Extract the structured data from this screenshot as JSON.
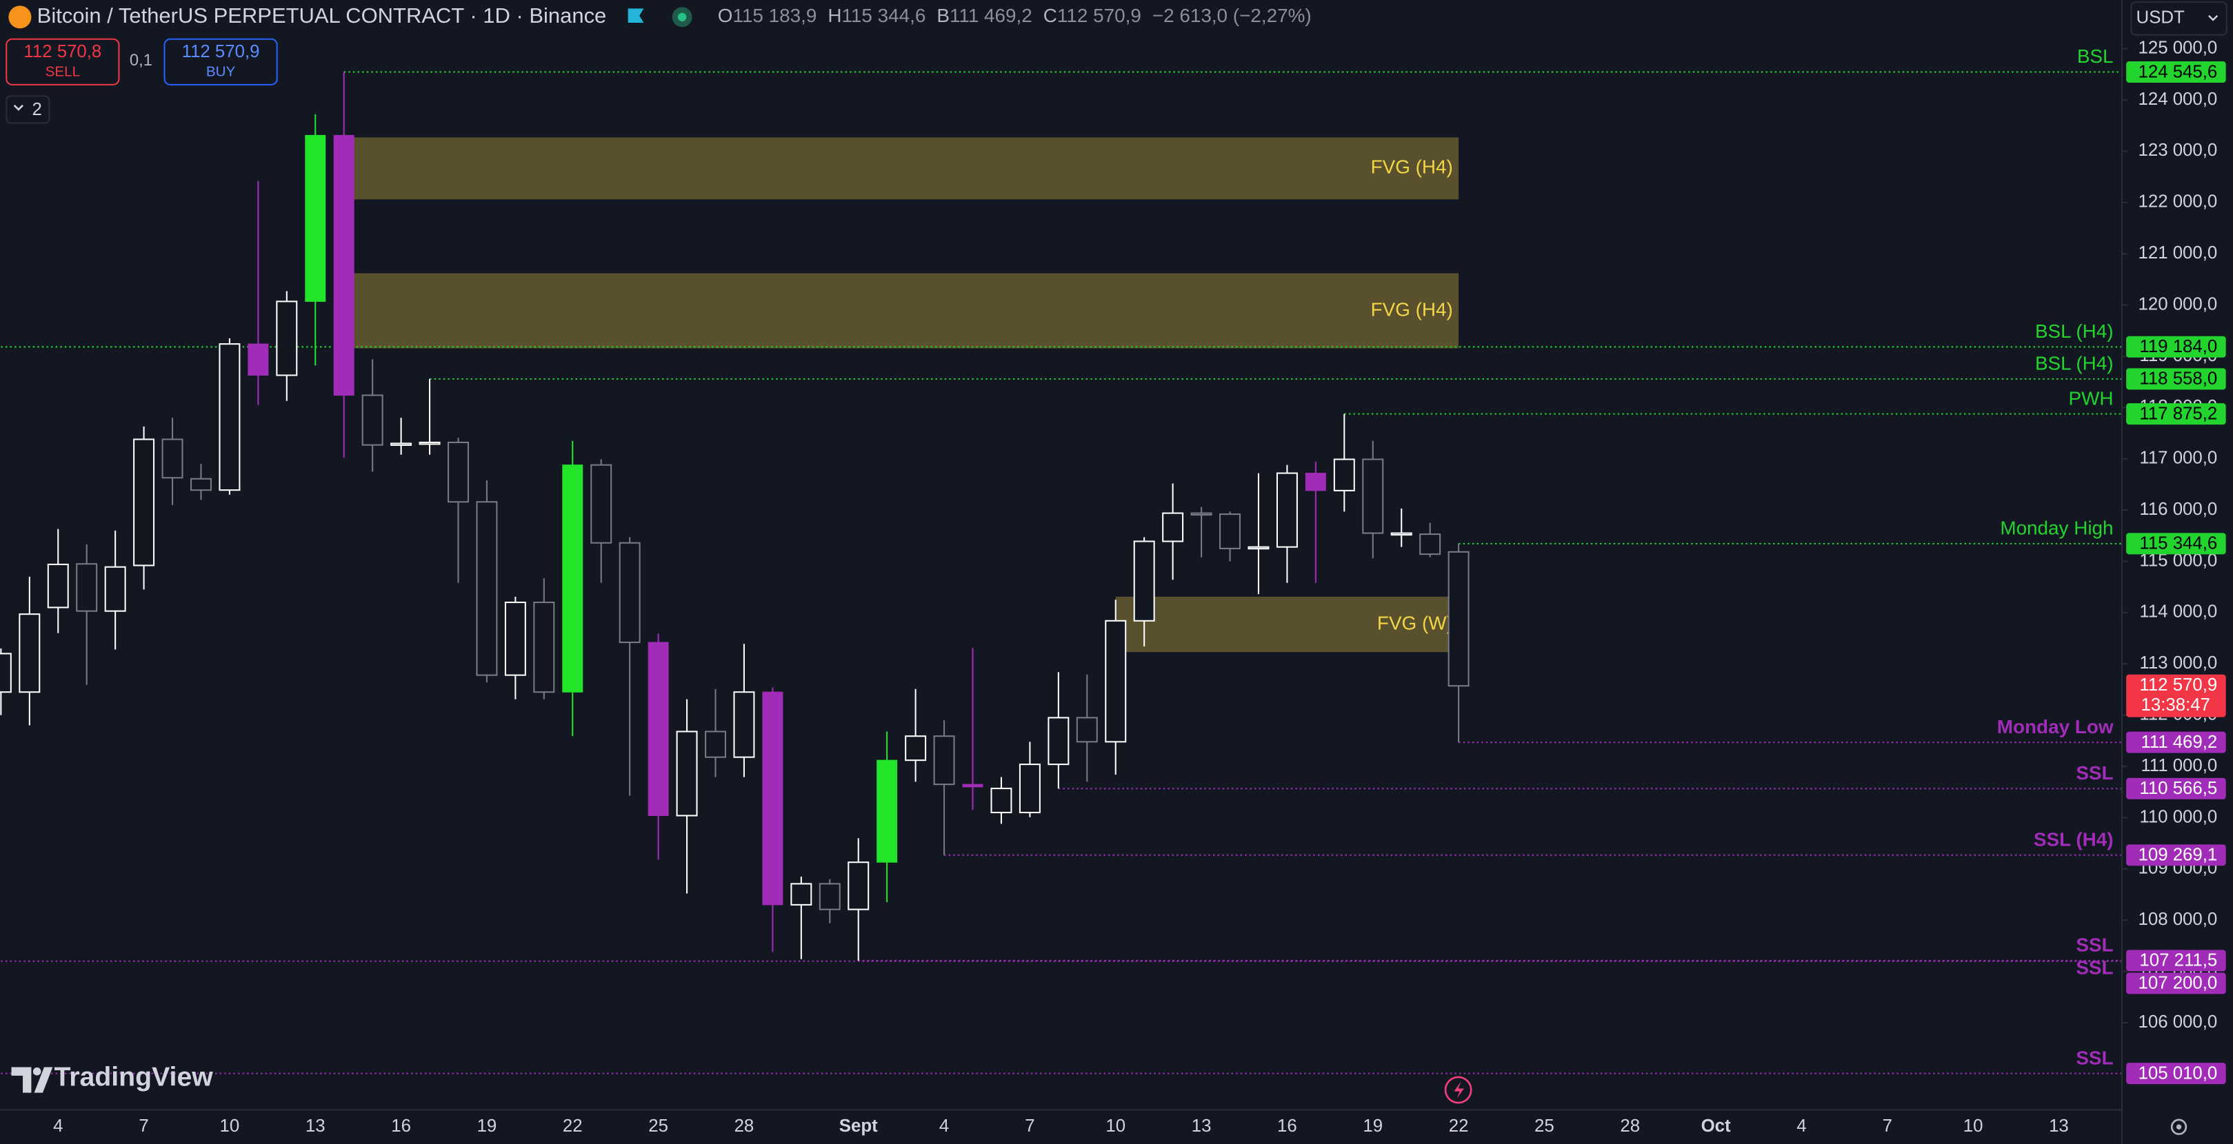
{
  "chart_data": {
    "type": "candlestick",
    "title": "Bitcoin / TetherUS PERPETUAL CONTRACT · 1D · Binance",
    "ohlc_labels": [
      {
        "key": "O",
        "label": "115 183,9"
      },
      {
        "key": "H",
        "label": "115 344,6"
      },
      {
        "key": "B",
        "label": "111 469,2"
      },
      {
        "key": "C",
        "label": "112 570,9"
      }
    ],
    "change_label": "−2 613,0 (−2,27%)",
    "sell": {
      "price": "112 570,8",
      "label": "SELL"
    },
    "spread": "0,1",
    "buy": {
      "price": "112 570,9",
      "label": "BUY"
    },
    "indicators_count": "2",
    "currency": "USDT",
    "brand": "TradingView",
    "categories": [
      null,
      null,
      "4",
      null,
      null,
      "7",
      null,
      null,
      "10",
      null,
      null,
      "13",
      null,
      null,
      "16",
      null,
      null,
      "19",
      null,
      null,
      "22",
      null,
      null,
      "25",
      null,
      null,
      "28",
      null,
      null,
      null,
      "Sept",
      null,
      null,
      "4",
      null,
      null,
      "7",
      null,
      null,
      "10",
      null,
      null,
      "13",
      null,
      null,
      "16",
      null,
      null,
      "19",
      null,
      null,
      "22",
      null,
      null,
      "25",
      null,
      null,
      "28",
      null,
      null,
      "Oct",
      null,
      null,
      "4",
      null,
      null,
      "7",
      null,
      null,
      "10",
      null,
      null,
      "13",
      null,
      null
    ],
    "open": [
      112450,
      112450,
      114100,
      114950,
      114030,
      114920,
      117380,
      116610,
      116390,
      119240,
      118630,
      120070,
      123310,
      118240,
      117300,
      117300,
      117320,
      116160,
      112780,
      114200,
      112450,
      116880,
      115360,
      113420,
      110040,
      111680,
      111180,
      112450,
      108300,
      108710,
      108210,
      109130,
      111120,
      111590,
      110650,
      110100,
      110100,
      111040,
      111950,
      111480,
      113840,
      115390,
      115940,
      115920,
      115250,
      115280,
      116720,
      116380,
      116990,
      115550,
      115530,
      115183.9,
      null,
      null,
      null,
      null,
      null,
      null,
      null,
      null,
      null,
      null,
      null,
      null,
      null,
      null,
      null,
      null,
      null,
      null,
      null,
      null,
      null,
      null,
      null
    ],
    "high": [
      113300,
      114700,
      115630,
      115330,
      115600,
      117630,
      117800,
      116900,
      119350,
      122420,
      120270,
      123720,
      124545.6,
      118940,
      117800,
      118558,
      117410,
      116580,
      114310,
      114670,
      117350,
      116990,
      115470,
      113590,
      112310,
      112510,
      113390,
      112540,
      108850,
      108800,
      109600,
      111680,
      112510,
      111900,
      113310,
      110790,
      111480,
      112840,
      112790,
      114250,
      115470,
      116520,
      116060,
      115970,
      116720,
      116880,
      116940,
      117875.2,
      117350,
      116030,
      115750,
      115344.6,
      null,
      null,
      null,
      null,
      null,
      null,
      null,
      null,
      null,
      null,
      null,
      null,
      null,
      null,
      null,
      null,
      null,
      null,
      null,
      null,
      null,
      null,
      null
    ],
    "low": [
      112000,
      111800,
      113600,
      112590,
      113280,
      114450,
      116100,
      116200,
      116300,
      118050,
      118130,
      118820,
      117020,
      116750,
      117080,
      117080,
      114580,
      112640,
      112310,
      112310,
      111590,
      114580,
      110430,
      109180,
      108520,
      110790,
      110790,
      107380,
      107240,
      107940,
      107211.5,
      108350,
      110700,
      109269.1,
      110150,
      109880,
      110010,
      110566.5,
      110700,
      110840,
      113340,
      114640,
      115080,
      115000,
      114360,
      114580,
      114580,
      115970,
      115060,
      115280,
      115080,
      111469.2,
      null,
      null,
      null,
      null,
      null,
      null,
      null,
      null,
      null,
      null,
      null,
      null,
      null,
      null,
      null,
      null,
      null,
      null,
      null,
      null,
      null,
      null,
      null
    ],
    "close": [
      113200,
      113970,
      114940,
      114030,
      114890,
      117380,
      116630,
      116390,
      119240,
      118630,
      120070,
      123310,
      118240,
      117270,
      117270,
      117320,
      116160,
      112780,
      114200,
      112450,
      116880,
      115360,
      113420,
      110040,
      111680,
      111180,
      112450,
      108300,
      108710,
      108210,
      109130,
      111120,
      111590,
      110650,
      110600,
      110570,
      111040,
      111950,
      111480,
      113840,
      115390,
      115940,
      115920,
      115250,
      115280,
      116720,
      116380,
      116990,
      115550,
      115530,
      115140,
      112570.9,
      null,
      null,
      null,
      null,
      null,
      null,
      null,
      null,
      null,
      null,
      null,
      null,
      null,
      null,
      null,
      null,
      null,
      null,
      null,
      null,
      null,
      null,
      null
    ],
    "colors": [
      "#ffffff",
      "#ffffff",
      "#ffffff",
      "#787b86",
      "#ffffff",
      "#ffffff",
      "#787b86",
      "#787b86",
      "#ffffff",
      "#a12cb8",
      "#ffffff",
      "#22e52a",
      "#a12cb8",
      "#787b86",
      "#ffffff",
      "#ffffff",
      "#787b86",
      "#787b86",
      "#ffffff",
      "#787b86",
      "#22e52a",
      "#787b86",
      "#787b86",
      "#a12cb8",
      "#ffffff",
      "#787b86",
      "#ffffff",
      "#a12cb8",
      "#ffffff",
      "#787b86",
      "#ffffff",
      "#22e52a",
      "#ffffff",
      "#787b86",
      "#a12cb8",
      "#ffffff",
      "#ffffff",
      "#ffffff",
      "#787b86",
      "#ffffff",
      "#ffffff",
      "#ffffff",
      "#787b86",
      "#787b86",
      "#ffffff",
      "#ffffff",
      "#a12cb8",
      "#ffffff",
      "#787b86",
      "#ffffff",
      "#787b86",
      "#787b86",
      null,
      null,
      null,
      null,
      null,
      null,
      null,
      null,
      null,
      null,
      null,
      null,
      null,
      null,
      null,
      null,
      null,
      null,
      null,
      null,
      null,
      null,
      null
    ],
    "up_color": "#ffffff",
    "down_color": "#787b86",
    "close_label": "112 570,9",
    "close_color": "#f23645",
    "countdown": "13:38:47",
    "ylim": [
      104300,
      125950
    ],
    "yticks": [
      {
        "value": 106000,
        "label": "106 000,0"
      },
      {
        "value": 107000,
        "label": "107 000,0"
      },
      {
        "value": 108000,
        "label": "108 000,0"
      },
      {
        "value": 109000,
        "label": "109 000,0"
      },
      {
        "value": 110000,
        "label": "110 000,0"
      },
      {
        "value": 111000,
        "label": "111 000,0"
      },
      {
        "value": 112000,
        "label": "112 000,0"
      },
      {
        "value": 113000,
        "label": "113 000,0"
      },
      {
        "value": 114000,
        "label": "114 000,0"
      },
      {
        "value": 115000,
        "label": "115 000,0"
      },
      {
        "value": 116000,
        "label": "116 000,0"
      },
      {
        "value": 117000,
        "label": "117 000,0"
      },
      {
        "value": 118000,
        "label": "118 000,0"
      },
      {
        "value": 119000,
        "label": "119 000,0"
      },
      {
        "value": 120000,
        "label": "120 000,0"
      },
      {
        "value": 121000,
        "label": "121 000,0"
      },
      {
        "value": 122000,
        "label": "122 000,0"
      },
      {
        "value": 123000,
        "label": "123 000,0"
      },
      {
        "value": 124000,
        "label": "124 000,0"
      },
      {
        "value": 125000,
        "label": "125 000,0"
      }
    ],
    "grid": false,
    "levels": [
      {
        "label": "BSL",
        "value": 124545.6,
        "value_label": "124 545,6",
        "color": "#22d42d"
      },
      {
        "label": "BSL (H4)",
        "value": 119184,
        "value_label": "119 184,0",
        "color": "#22d42d"
      },
      {
        "label": "BSL (H4)",
        "value": 118558,
        "value_label": "118 558,0",
        "color": "#22d42d"
      },
      {
        "label": "PWH",
        "value": 117875.2,
        "value_label": "117 875,2",
        "color": "#22d42d"
      },
      {
        "label": "Monday High",
        "value": 115344.6,
        "value_label": "115 344,6",
        "color": "#22d42d"
      },
      {
        "label": "Monday Low",
        "value": 111469.2,
        "value_label": "111 469,2",
        "color": "#a12cb8"
      },
      {
        "label": "SSL",
        "value": 110566.5,
        "value_label": "110 566,5",
        "color": "#a12cb8"
      },
      {
        "label": "SSL (H4)",
        "value": 109269.1,
        "value_label": "109 269,1",
        "color": "#a12cb8"
      },
      {
        "label": "SSL",
        "value": 107211.5,
        "value_label": "107 211,5",
        "color": "#a12cb8"
      },
      {
        "label": "SSL",
        "value": 107200,
        "value_label": "107 200,0",
        "color": "#a12cb8"
      },
      {
        "label": "SSL",
        "value": 105010,
        "value_label": "105 010,0",
        "color": "#a12cb8"
      }
    ],
    "zones": [
      {
        "label": "FVG (H4)",
        "top": 123270,
        "bottom": 122060,
        "span": [
          12,
          51
        ],
        "color": "#5f5730"
      },
      {
        "label": "FVG (H4)",
        "top": 120620,
        "bottom": 119155,
        "span": [
          12,
          51
        ],
        "color": "#5f5730"
      },
      {
        "label": "FVG (W)",
        "top": 114310,
        "bottom": 113230,
        "span": [
          39,
          51
        ],
        "color": "#5f5730"
      }
    ]
  }
}
